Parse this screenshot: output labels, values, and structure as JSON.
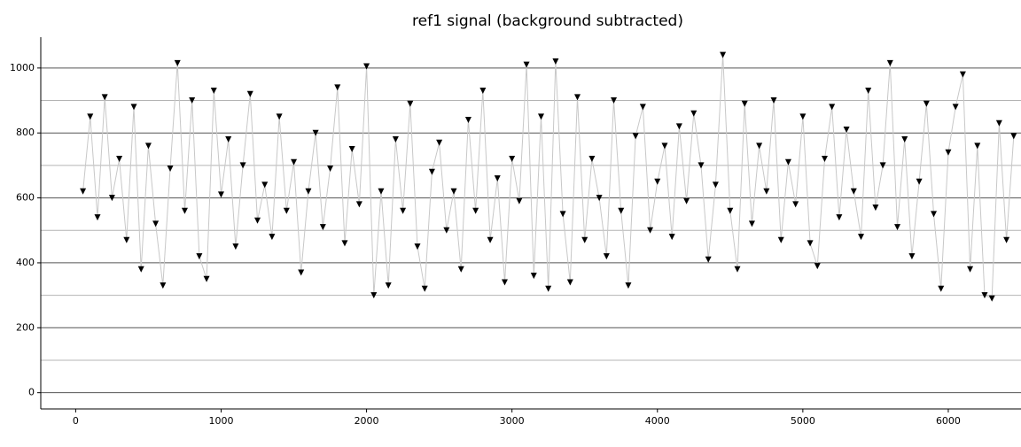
{
  "chart_data": {
    "type": "scatter",
    "title": "ref1 signal (background subtracted)",
    "x": [
      50,
      100,
      150,
      200,
      250,
      300,
      350,
      400,
      450,
      500,
      550,
      600,
      650,
      700,
      750,
      800,
      850,
      900,
      950,
      1000,
      1050,
      1100,
      1150,
      1200,
      1250,
      1300,
      1350,
      1400,
      1450,
      1500,
      1550,
      1600,
      1650,
      1700,
      1750,
      1800,
      1850,
      1900,
      1950,
      2000,
      2050,
      2100,
      2150,
      2200,
      2250,
      2300,
      2350,
      2400,
      2450,
      2500,
      2550,
      2600,
      2650,
      2700,
      2750,
      2800,
      2850,
      2900,
      2950,
      3000,
      3050,
      3100,
      3150,
      3200,
      3250,
      3300,
      3350,
      3400,
      3450,
      3500,
      3550,
      3600,
      3650,
      3700,
      3750,
      3800,
      3850,
      3900,
      3950,
      4000,
      4050,
      4100,
      4150,
      4200,
      4250,
      4300,
      4350,
      4400,
      4450,
      4500,
      4550,
      4600,
      4650,
      4700,
      4750,
      4800,
      4850,
      4900,
      4950,
      5000,
      5050,
      5100,
      5150,
      5200,
      5250,
      5300,
      5350,
      5400,
      5450,
      5500,
      5550,
      5600,
      5650,
      5700,
      5750,
      5800,
      5850,
      5900,
      5950,
      6000,
      6050,
      6100,
      6150,
      6200,
      6250,
      6300,
      6350,
      6400,
      6450
    ],
    "values": [
      620,
      850,
      540,
      910,
      600,
      720,
      470,
      880,
      380,
      760,
      520,
      330,
      690,
      1015,
      560,
      900,
      420,
      350,
      930,
      610,
      780,
      450,
      700,
      920,
      530,
      640,
      480,
      850,
      560,
      710,
      370,
      620,
      800,
      510,
      690,
      940,
      460,
      750,
      580,
      1005,
      300,
      620,
      330,
      780,
      560,
      890,
      450,
      320,
      680,
      770,
      500,
      620,
      380,
      840,
      560,
      930,
      470,
      660,
      340,
      720,
      590,
      1010,
      360,
      850,
      320,
      1020,
      550,
      340,
      910,
      470,
      720,
      600,
      420,
      900,
      560,
      330,
      790,
      880,
      500,
      650,
      760,
      480,
      820,
      590,
      860,
      700,
      410,
      640,
      1040,
      560,
      380,
      890,
      520,
      760,
      620,
      900,
      470,
      710,
      580,
      850,
      460,
      390,
      720,
      880,
      540,
      810,
      620,
      480,
      930,
      570,
      700,
      1015,
      510,
      780,
      420,
      650,
      890,
      550,
      320,
      740,
      880,
      980,
      380,
      760,
      300,
      290,
      830,
      470,
      790
    ],
    "color": "#000000",
    "line_color": "#c8c8c8",
    "xlim": [
      -240,
      6500
    ],
    "xticks": [
      0,
      1000,
      2000,
      3000,
      4000,
      5000,
      6000
    ],
    "ylim": [
      -50,
      1095
    ],
    "yticks": [
      0,
      200,
      400,
      600,
      800,
      1000
    ],
    "minor_yticks": [
      100,
      300,
      500,
      700,
      900
    ],
    "grid": true
  }
}
